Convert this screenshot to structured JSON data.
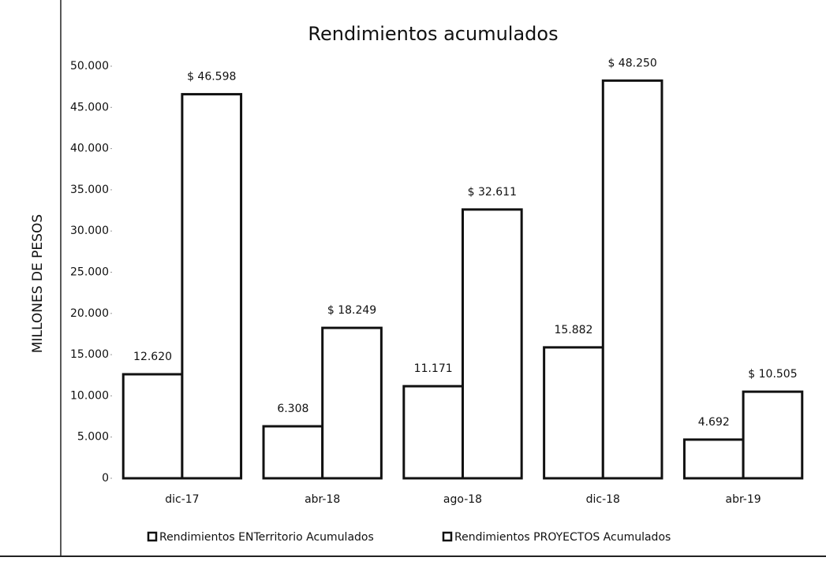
{
  "chart_data": {
    "type": "bar",
    "title": "Rendimientos acumulados",
    "y_label": "MILLONES DE PESOS",
    "categories": [
      "dic-17",
      "abr-18",
      "ago-18",
      "dic-18",
      "abr-19"
    ],
    "series": [
      {
        "name": "Rendimientos ENTerritorio Acumulados",
        "color": "#ffffff",
        "values": [
          12620,
          6308,
          11171,
          15882,
          4692
        ],
        "value_labels": [
          "12.620",
          "6.308",
          "11.171",
          "15.882",
          "4.692"
        ]
      },
      {
        "name": "Rendimientos PROYECTOS Acumulados",
        "color": "#ffffff",
        "values": [
          46598,
          18249,
          32611,
          48250,
          10505
        ],
        "value_labels": [
          "$ 46.598",
          "$ 18.249",
          "$ 32.611",
          "$ 48.250",
          "$ 10.505"
        ]
      }
    ],
    "ylim": [
      0,
      50000
    ],
    "yticks": [
      0,
      {
        "value": 5000,
        "label": "5.000"
      },
      {
        "value": 10000,
        "label": "10.000"
      },
      {
        "value": 15000,
        "label": "15.000"
      },
      {
        "value": 20000,
        "label": "20.000"
      },
      {
        "value": 25000,
        "label": "25.000"
      },
      {
        "value": 30000,
        "label": "30.000"
      },
      {
        "value": 35000,
        "label": "35.000"
      },
      {
        "value": 40000,
        "label": "40.000"
      },
      {
        "value": 45000,
        "label": "45.000"
      },
      {
        "value": 50000,
        "label": "50.000"
      }
    ],
    "legend": "bottom"
  }
}
